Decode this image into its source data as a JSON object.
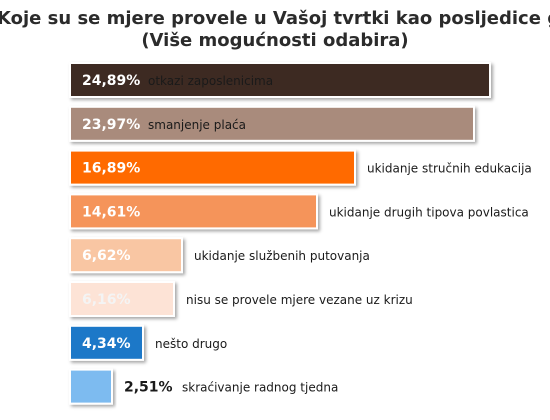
{
  "header": {
    "title_line1": "Koje su se mjere provele u Vašoj tvrtki kao posljedice gospodarske krize?",
    "title_line2": "(Više mogućnosti odabira)"
  },
  "chart_data": {
    "type": "bar",
    "orientation": "horizontal",
    "title": "Koje su se mjere provele u Vašoj tvrtki kao posljedice gospodarske krize? (Više mogućnosti odabira)",
    "xlim": [
      0,
      24.89
    ],
    "grid": false,
    "legend": "none",
    "categories": [
      "otkazi zaposlenicima",
      "smanjenje plaća",
      "ukidanje stručnih edukacija",
      "ukidanje drugih tipova povlastica",
      "ukidanje službenih putovanja",
      "nisu se provele mjere vezane uz krizu",
      "nešto drugo",
      "skraćivanje radnog tjedna"
    ],
    "values": [
      24.89,
      23.97,
      16.89,
      14.61,
      6.62,
      6.16,
      4.34,
      2.51
    ],
    "value_labels": [
      "24,89%",
      "23,97%",
      "16,89%",
      "14,61%",
      "6,62%",
      "6,16%",
      "4,34%",
      "2,51%"
    ],
    "colors": [
      "#3d2c24",
      "#a98b7b",
      "#ff6a00",
      "#f5945a",
      "#f9c6a3",
      "#fde3d6",
      "#1e78c8",
      "#7dbbf0"
    ],
    "value_text_colors": [
      "#ffffff",
      "#ffffff",
      "#ffffff",
      "#ffffff",
      "#ffffff",
      "#f4f4f4",
      "#ffffff",
      "#1a1a1a"
    ]
  }
}
